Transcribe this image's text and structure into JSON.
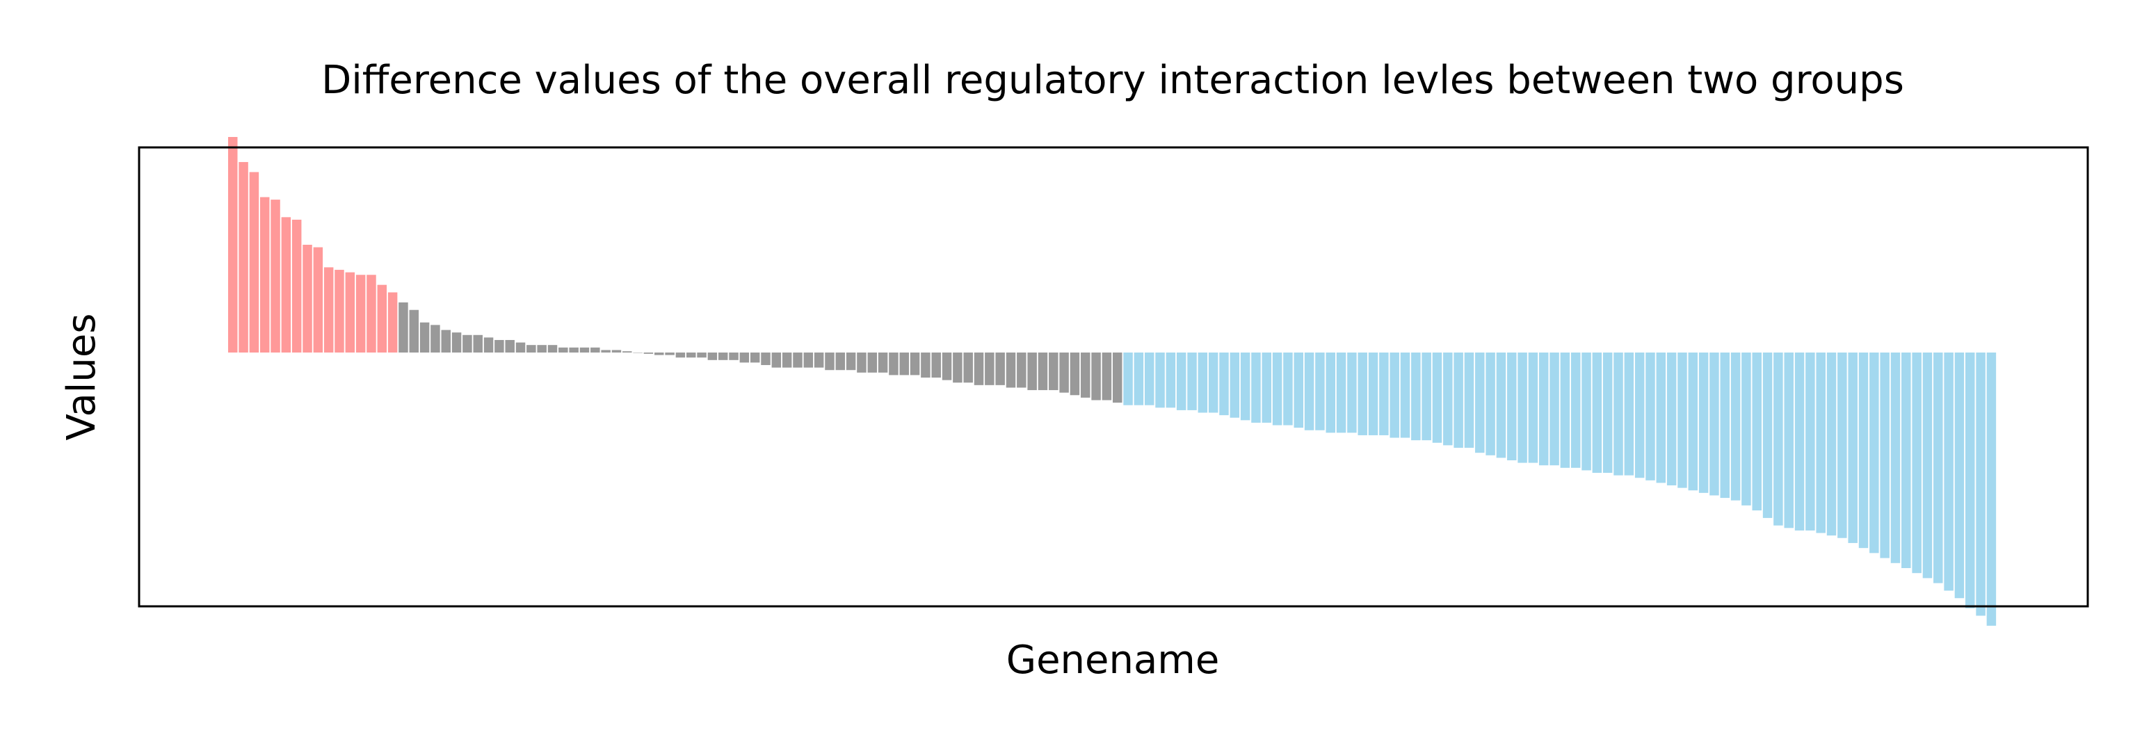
{
  "chart_data": {
    "type": "bar",
    "title": "Difference values of the overall regulatory interaction levles between two groups",
    "xlabel": "Genename",
    "ylabel": "Values",
    "xticks": "none",
    "yticks": "none",
    "grid": false,
    "legend": "none",
    "ylim": [
      -1.09,
      1.09
    ],
    "colors": {
      "positive": "#ff9999",
      "neutral": "#999999",
      "negative": "#a3d8ef"
    },
    "series": [
      {
        "group": "positive",
        "color": "#ff9999",
        "values": [
          0.86,
          0.76,
          0.72,
          0.62,
          0.61,
          0.54,
          0.53,
          0.43,
          0.42,
          0.34,
          0.33,
          0.32,
          0.31,
          0.31,
          0.27,
          0.24
        ]
      },
      {
        "group": "neutral",
        "color": "#999999",
        "values": [
          0.2,
          0.17,
          0.12,
          0.11,
          0.09,
          0.08,
          0.07,
          0.07,
          0.06,
          0.05,
          0.05,
          0.04,
          0.03,
          0.03,
          0.03,
          0.02,
          0.02,
          0.02,
          0.02,
          0.01,
          0.01,
          0.005,
          0.0,
          -0.005,
          -0.01,
          -0.01,
          -0.02,
          -0.02,
          -0.02,
          -0.03,
          -0.03,
          -0.03,
          -0.04,
          -0.04,
          -0.05,
          -0.06,
          -0.06,
          -0.06,
          -0.06,
          -0.06,
          -0.07,
          -0.07,
          -0.07,
          -0.08,
          -0.08,
          -0.08,
          -0.09,
          -0.09,
          -0.09,
          -0.1,
          -0.1,
          -0.11,
          -0.12,
          -0.12,
          -0.13,
          -0.13,
          -0.13,
          -0.14,
          -0.14,
          -0.15,
          -0.15,
          -0.15,
          -0.16,
          -0.17,
          -0.18,
          -0.19,
          -0.19,
          -0.2,
          -0.21,
          -0.21,
          -0.21,
          -0.22,
          -0.22,
          -0.23,
          -0.23,
          -0.24,
          -0.24,
          -0.25,
          -0.26,
          -0.27,
          -0.28,
          -0.28,
          -0.29,
          -0.29,
          -0.3,
          -0.31,
          -0.31,
          -0.32,
          -0.32,
          -0.32,
          -0.33,
          -0.33,
          -0.33,
          -0.34,
          -0.34,
          -0.35,
          -0.35,
          -0.36,
          -0.37,
          -0.38,
          -0.38,
          -0.4,
          -0.41,
          -0.42,
          -0.43,
          -0.44,
          -0.44,
          -0.45,
          -0.45,
          -0.46,
          -0.46,
          -0.47,
          -0.48,
          -0.48,
          -0.49,
          -0.49,
          -0.5,
          -0.51,
          -0.52,
          -0.53,
          -0.54,
          -0.55,
          -0.56,
          -0.57,
          -0.58,
          -0.59,
          -0.61,
          -0.63,
          -0.66,
          -0.69,
          -0.7,
          -0.71,
          -0.71,
          -0.72,
          -0.73,
          -0.74,
          -0.76,
          -0.78,
          -0.8,
          -0.82,
          -0.84,
          -0.86,
          -0.88,
          -0.9,
          -0.92,
          -0.95,
          -0.98,
          -1.02,
          -1.05,
          -1.09
        ]
      }
    ]
  }
}
